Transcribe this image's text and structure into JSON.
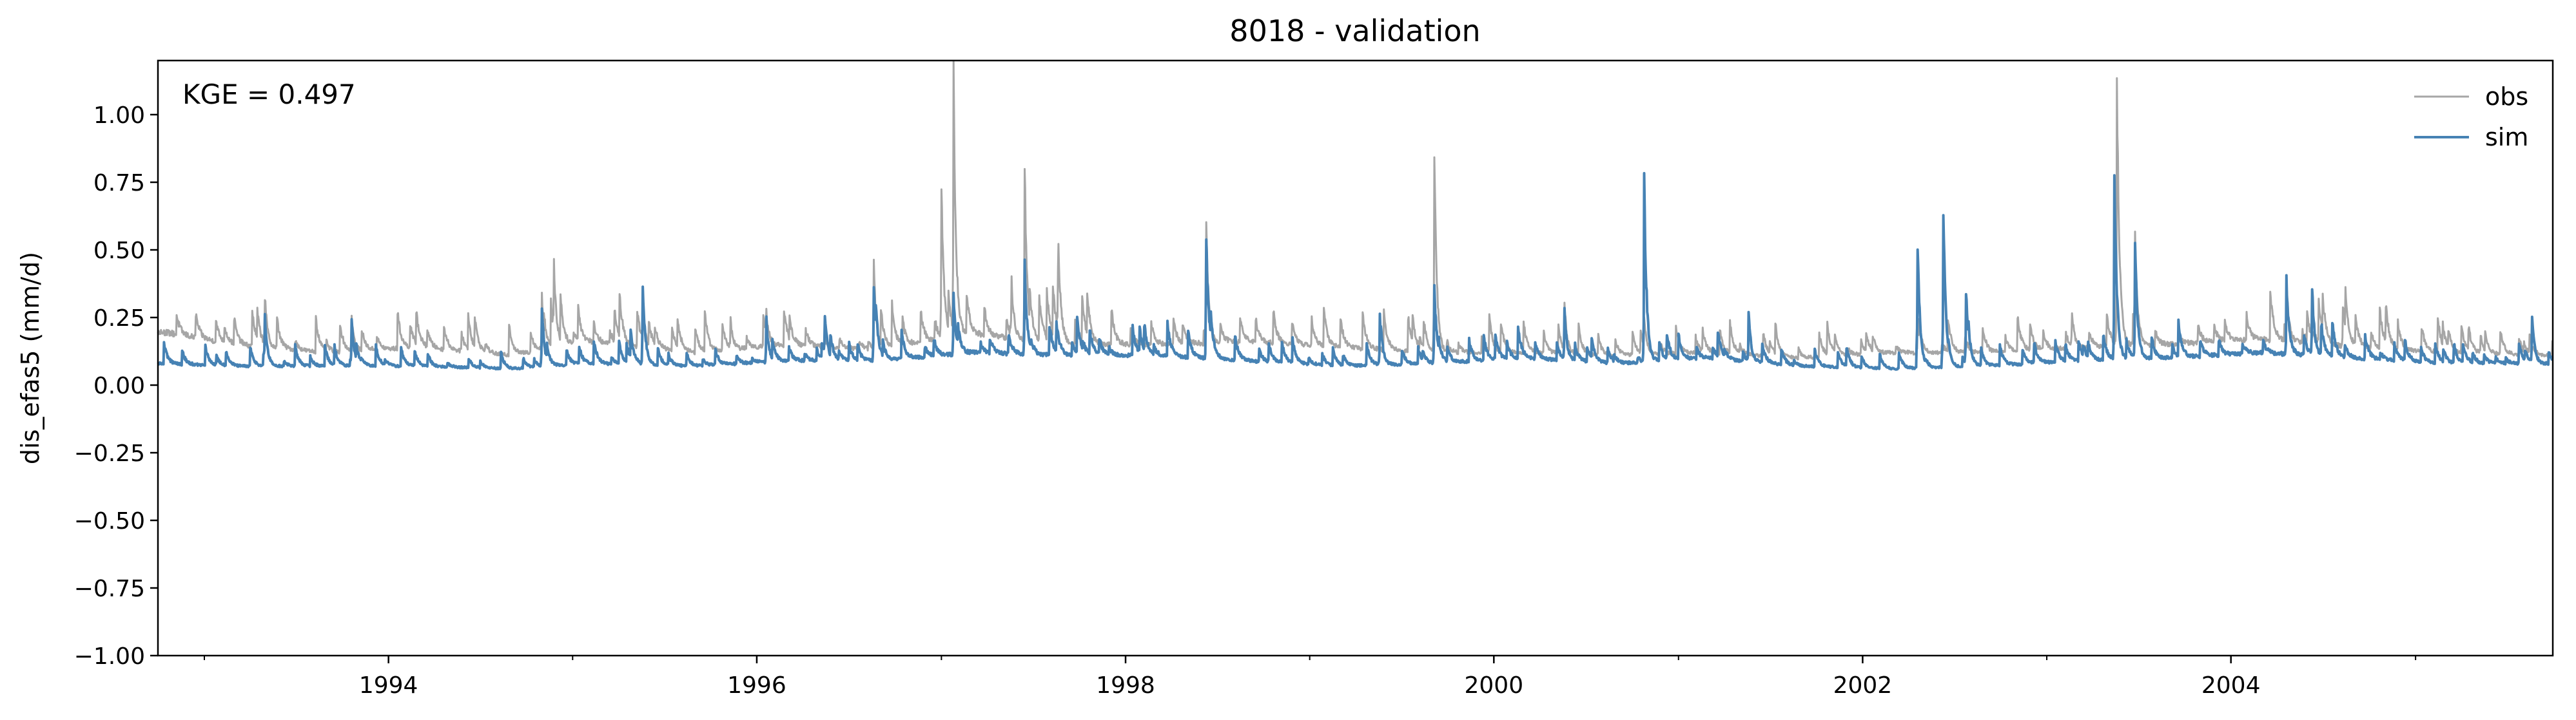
{
  "chart_data": {
    "type": "line",
    "title": "8018 - validation",
    "ylabel": "dis_efas5 (mm/d)",
    "xlabel": "",
    "annotation": "KGE = 0.497",
    "xlim": [
      "1992-10-01",
      "2005-09-30"
    ],
    "ylim": [
      -1.0,
      1.2
    ],
    "yticks": [
      -1.0,
      -0.75,
      -0.5,
      -0.25,
      0.0,
      0.25,
      0.5,
      0.75,
      1.0
    ],
    "ytick_labels": [
      "−1.00",
      "−0.75",
      "−0.50",
      "−0.25",
      "0.00",
      "0.25",
      "0.50",
      "0.75",
      "1.00"
    ],
    "xticks": [
      "1994-01-01",
      "1996-01-01",
      "1998-01-01",
      "2000-01-01",
      "2002-01-01",
      "2004-01-01"
    ],
    "xtick_labels": [
      "1994",
      "1996",
      "1998",
      "2000",
      "2002",
      "2004"
    ],
    "grid": false,
    "legend": "top-right",
    "series": [
      {
        "name": "obs",
        "color": "#a6a6a6",
        "baseline": [
          [
            "1992-10-01",
            0.2
          ],
          [
            "1993-03-01",
            0.15
          ],
          [
            "1993-09-01",
            0.12
          ],
          [
            "1994-03-01",
            0.14
          ],
          [
            "1994-09-01",
            0.11
          ],
          [
            "1995-02-01",
            0.16
          ],
          [
            "1995-09-01",
            0.12
          ],
          [
            "1996-03-01",
            0.15
          ],
          [
            "1996-09-01",
            0.13
          ],
          [
            "1997-03-01",
            0.19
          ],
          [
            "1997-09-01",
            0.15
          ],
          [
            "1998-03-01",
            0.15
          ],
          [
            "1998-09-01",
            0.16
          ],
          [
            "1999-03-01",
            0.14
          ],
          [
            "1999-09-01",
            0.12
          ],
          [
            "2000-03-01",
            0.12
          ],
          [
            "2000-09-01",
            0.11
          ],
          [
            "2001-03-01",
            0.12
          ],
          [
            "2001-09-01",
            0.1
          ],
          [
            "2002-03-01",
            0.12
          ],
          [
            "2002-09-01",
            0.12
          ],
          [
            "2003-03-01",
            0.14
          ],
          [
            "2003-09-01",
            0.15
          ],
          [
            "2004-03-01",
            0.17
          ],
          [
            "2004-09-01",
            0.14
          ],
          [
            "2005-03-01",
            0.12
          ],
          [
            "2005-09-30",
            0.11
          ]
        ],
        "peaks": [
          [
            "1993-05-01",
            0.33
          ],
          [
            "1993-10-20",
            0.25
          ],
          [
            "1994-11-01",
            0.34
          ],
          [
            "1994-11-25",
            0.45
          ],
          [
            "1995-05-20",
            0.3
          ],
          [
            "1995-11-10",
            0.24
          ],
          [
            "1996-01-20",
            0.27
          ],
          [
            "1996-08-20",
            0.44
          ],
          [
            "1997-01-01",
            0.74
          ],
          [
            "1997-01-25",
            1.15
          ],
          [
            "1997-05-20",
            0.39
          ],
          [
            "1997-06-15",
            0.81
          ],
          [
            "1997-08-20",
            0.45
          ],
          [
            "1998-06-10",
            0.58
          ],
          [
            "1999-04-20",
            0.2
          ],
          [
            "1999-09-05",
            0.86
          ],
          [
            "2000-05-20",
            0.3
          ],
          [
            "2000-10-25",
            0.25
          ],
          [
            "2002-04-20",
            0.22
          ],
          [
            "2003-02-20",
            0.27
          ],
          [
            "2003-05-20",
            1.16
          ],
          [
            "2003-06-25",
            0.55
          ],
          [
            "2004-04-20",
            0.37
          ],
          [
            "2004-08-10",
            0.3
          ],
          [
            "2005-05-10",
            0.19
          ]
        ]
      },
      {
        "name": "sim",
        "color": "#4682b4",
        "baseline": [
          [
            "1992-10-01",
            0.08
          ],
          [
            "1993-03-01",
            0.07
          ],
          [
            "1993-09-01",
            0.07
          ],
          [
            "1994-03-01",
            0.07
          ],
          [
            "1994-09-01",
            0.06
          ],
          [
            "1995-02-01",
            0.08
          ],
          [
            "1995-09-01",
            0.07
          ],
          [
            "1996-03-01",
            0.09
          ],
          [
            "1996-09-01",
            0.09
          ],
          [
            "1997-03-01",
            0.12
          ],
          [
            "1997-09-01",
            0.11
          ],
          [
            "1998-03-01",
            0.11
          ],
          [
            "1998-09-01",
            0.09
          ],
          [
            "1999-03-01",
            0.07
          ],
          [
            "1999-09-01",
            0.08
          ],
          [
            "2000-03-01",
            0.1
          ],
          [
            "2000-09-01",
            0.08
          ],
          [
            "2001-03-01",
            0.1
          ],
          [
            "2001-09-01",
            0.07
          ],
          [
            "2002-03-01",
            0.06
          ],
          [
            "2002-09-01",
            0.07
          ],
          [
            "2003-03-01",
            0.09
          ],
          [
            "2003-09-01",
            0.1
          ],
          [
            "2004-03-01",
            0.12
          ],
          [
            "2004-09-01",
            0.1
          ],
          [
            "2005-03-01",
            0.08
          ],
          [
            "2005-09-30",
            0.08
          ]
        ],
        "peaks": [
          [
            "1993-05-01",
            0.25
          ],
          [
            "1993-10-20",
            0.24
          ],
          [
            "1994-11-01",
            0.29
          ],
          [
            "1995-05-20",
            0.36
          ],
          [
            "1996-01-20",
            0.24
          ],
          [
            "1996-05-15",
            0.27
          ],
          [
            "1996-08-20",
            0.37
          ],
          [
            "1997-01-25",
            0.33
          ],
          [
            "1997-06-15",
            0.44
          ],
          [
            "1998-06-10",
            0.54
          ],
          [
            "1999-05-20",
            0.25
          ],
          [
            "1999-09-05",
            0.37
          ],
          [
            "2000-05-20",
            0.28
          ],
          [
            "2000-10-25",
            0.75
          ],
          [
            "2001-05-20",
            0.27
          ],
          [
            "2002-04-20",
            0.52
          ],
          [
            "2002-06-10",
            0.63
          ],
          [
            "2002-07-25",
            0.35
          ],
          [
            "2003-05-15",
            0.78
          ],
          [
            "2003-06-25",
            0.51
          ],
          [
            "2004-04-20",
            0.39
          ],
          [
            "2004-06-10",
            0.35
          ],
          [
            "2005-08-20",
            0.26
          ]
        ]
      }
    ]
  }
}
